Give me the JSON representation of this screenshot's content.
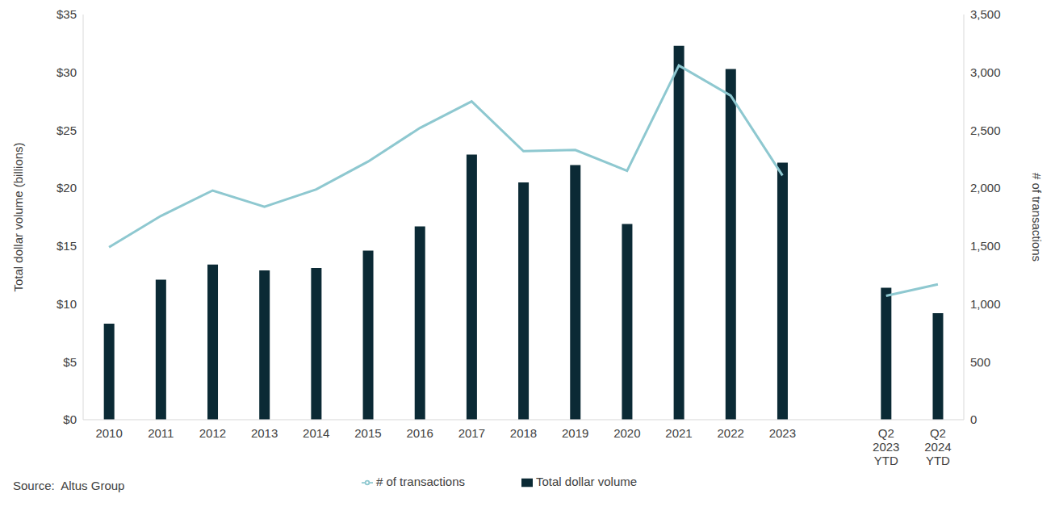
{
  "chart_data": {
    "type": "bar",
    "categories": [
      "2010",
      "2011",
      "2012",
      "2013",
      "2014",
      "2015",
      "2016",
      "2017",
      "2018",
      "2019",
      "2020",
      "2021",
      "2022",
      "2023",
      null,
      "Q2 2023 YTD",
      "Q2 2024 YTD"
    ],
    "series": [
      {
        "name": "Total dollar volume",
        "type": "bar",
        "color": "#0b2a35",
        "values": [
          8.3,
          12.1,
          13.4,
          12.9,
          13.1,
          14.6,
          16.7,
          22.9,
          20.5,
          22.0,
          16.9,
          32.3,
          30.3,
          22.2,
          null,
          11.4,
          9.2
        ]
      },
      {
        "name": "# of transactions",
        "type": "line",
        "axis": "y2",
        "color": "#8ec8d0",
        "values": [
          1490,
          1760,
          1980,
          1840,
          1990,
          2230,
          2520,
          2750,
          2320,
          2330,
          2150,
          3060,
          2800,
          2110,
          null,
          1070,
          1170
        ]
      }
    ],
    "y_label": "Total dollar volume (billions)",
    "y2_label": "# of transactions",
    "ylim": [
      0,
      35
    ],
    "yticks": [
      {
        "value": 0,
        "label": "$0"
      },
      {
        "value": 5,
        "label": "$5"
      },
      {
        "value": 10,
        "label": "$10"
      },
      {
        "value": 15,
        "label": "$15"
      },
      {
        "value": 20,
        "label": "$20"
      },
      {
        "value": 25,
        "label": "$25"
      },
      {
        "value": 30,
        "label": "$30"
      },
      {
        "value": 35,
        "label": "$35"
      }
    ],
    "y2lim": [
      0,
      3500
    ],
    "y2ticks": [
      0,
      500,
      {
        "value": 1000,
        "label": "1,000"
      },
      {
        "value": 1500,
        "label": "1,500"
      },
      {
        "value": 2000,
        "label": "2,000"
      },
      {
        "value": 2500,
        "label": "2,500"
      },
      {
        "value": 3000,
        "label": "3,000"
      },
      {
        "value": 3500,
        "label": "3,500"
      }
    ],
    "annotations": [
      "Source:  Altus Group"
    ],
    "legend": "bottom",
    "grid": false
  }
}
